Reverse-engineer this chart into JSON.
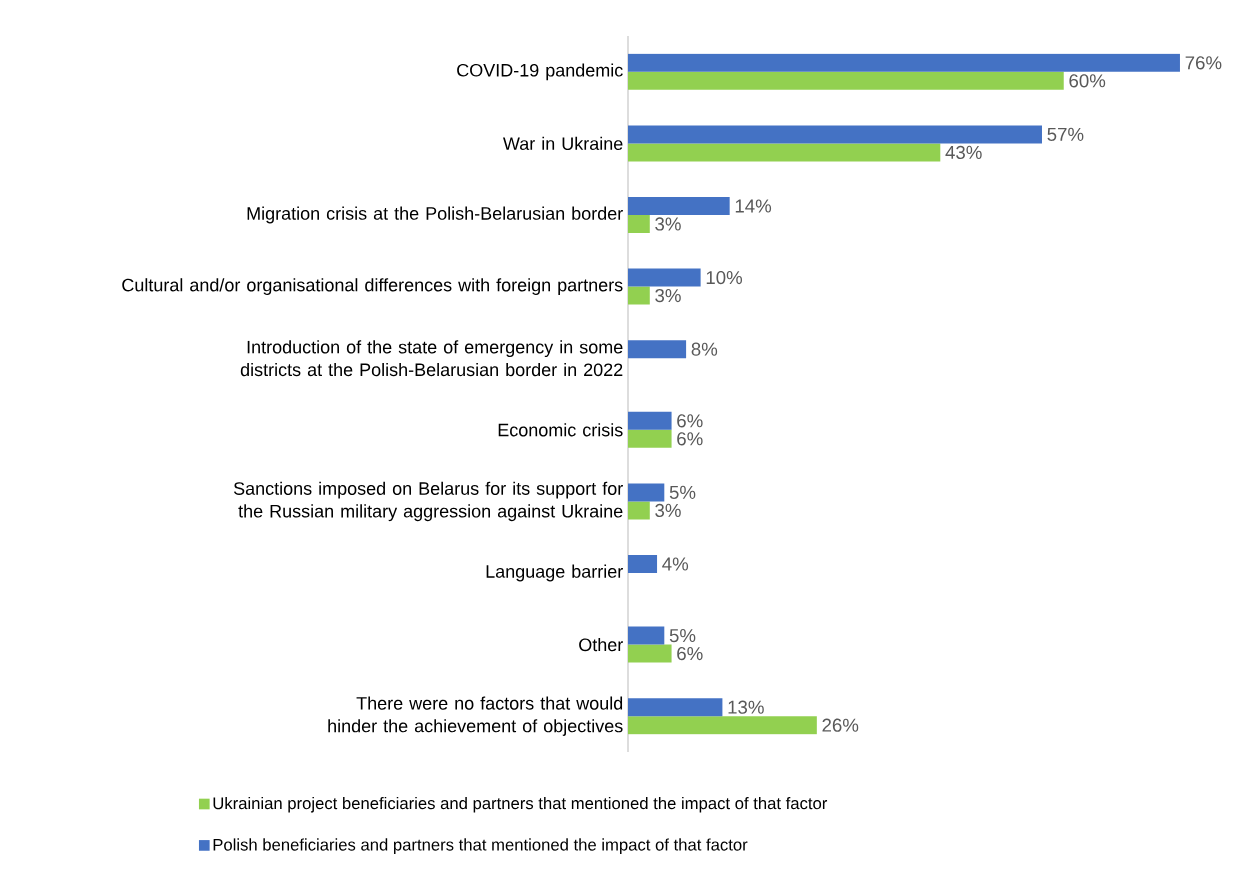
{
  "chart_data": {
    "type": "bar",
    "orientation": "horizontal",
    "legend": "bottom",
    "categories": [
      "COVID-19 pandemic",
      "War in Ukraine",
      "Migration crisis at the Polish-Belarusian border",
      "Cultural and/or organisational differences with foreign partners",
      "Introduction of the state of emergency in some districts at the Polish-Belarusian border in 2022",
      "Economic crisis",
      "Sanctions imposed on Belarus for its support for the Russian military aggression against Ukraine",
      "Language barrier",
      "Other",
      "There were no factors that would hinder the achievement of objectives"
    ],
    "series": [
      {
        "name": "Ukrainian project beneficiaries and partners that mentioned the impact of that factor",
        "color": "#92d050",
        "values": [
          60,
          43,
          3,
          3,
          null,
          6,
          3,
          null,
          6,
          26
        ],
        "value_labels": [
          "60%",
          "43%",
          "3%",
          "3%",
          null,
          "6%",
          "3%",
          null,
          "6%",
          "26%"
        ]
      },
      {
        "name": "Polish beneficiaries and partners that mentioned the impact of that factor",
        "color": "#4472c4",
        "values": [
          76,
          57,
          14,
          10,
          8,
          6,
          5,
          4,
          5,
          13
        ],
        "value_labels": [
          "76%",
          "57%",
          "14%",
          "10%",
          "8%",
          "6%",
          "5%",
          "4%",
          "5%",
          "13%"
        ]
      }
    ]
  }
}
